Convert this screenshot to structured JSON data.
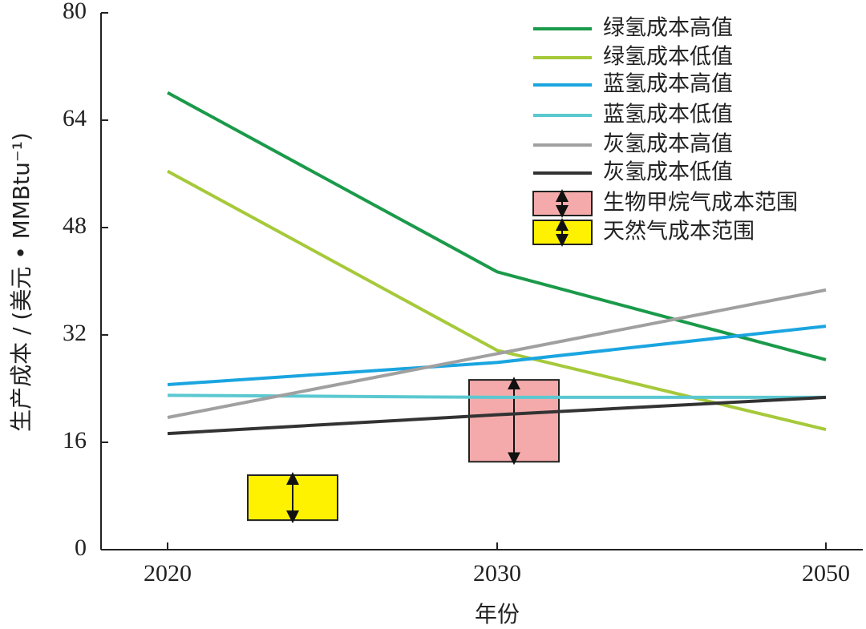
{
  "chart_data": {
    "type": "line",
    "x_label": "年份",
    "y_label": "生产成本 / (美元 • MMBtu⁻¹)",
    "categories": [
      "2020",
      "2030",
      "2050"
    ],
    "ylim": [
      0,
      80
    ],
    "yticks": [
      0,
      16,
      32,
      48,
      64,
      80
    ],
    "legend": "upper right",
    "series": [
      {
        "name": "绿氢成本高值",
        "color": "#1a9a4a",
        "values": [
          68.1,
          41.4,
          28.3
        ]
      },
      {
        "name": "绿氢成本低值",
        "color": "#a6c93a",
        "values": [
          56.4,
          29.7,
          17.9
        ]
      },
      {
        "name": "蓝氢成本高值",
        "color": "#1aa5e0",
        "values": [
          24.6,
          27.9,
          33.3
        ]
      },
      {
        "name": "蓝氢成本低值",
        "color": "#5bc8d0",
        "values": [
          23.0,
          22.7,
          22.7
        ]
      },
      {
        "name": "灰氢成本高值",
        "color": "#a0a0a0",
        "values": [
          19.7,
          29.2,
          38.7
        ]
      },
      {
        "name": "灰氢成本低值",
        "color": "#333333",
        "values": [
          17.3,
          20.1,
          22.7
        ]
      }
    ],
    "ranges": [
      {
        "name": "生物甲烷气成本范围",
        "color": "#f4aaaa",
        "low": 13.1,
        "high": 25.3
      },
      {
        "name": "天然气成本范围",
        "color": "#fff200",
        "low": 4.4,
        "high": 11.1
      }
    ]
  }
}
